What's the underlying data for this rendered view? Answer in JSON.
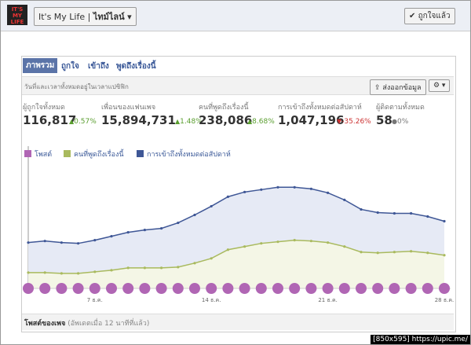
{
  "header": {
    "page_name": "It's My Life",
    "timeline_button": "ไทม์ไลน์",
    "liked_button": "ถูกใจแล้ว"
  },
  "tabs": [
    "ภาพรวม",
    "ถูกใจ",
    "เข้าถึง",
    "พูดถึงเรื่องนี้"
  ],
  "toolbar": {
    "timezone_note": "วันที่และเวลาทั้งหมดอยู่ในเวลาแปซิฟิก",
    "export_button": "ส่งออกข้อมูล"
  },
  "stats": [
    {
      "label": "ผู้ถูกใจทั้งหมด",
      "value": "116,817",
      "change": "0.57%",
      "trend": "up"
    },
    {
      "label": "เพื่อนของแฟนเพจ",
      "value": "15,894,731",
      "change": "1.48%",
      "trend": "up"
    },
    {
      "label": "คนที่พูดถึงเรื่องนี้",
      "value": "238,086",
      "change": "8.68%",
      "trend": "up"
    },
    {
      "label": "การเข้าถึงทั้งหมดต่อสัปดาห์",
      "value": "1,047,196",
      "change": "-35.26%",
      "trend": "down"
    },
    {
      "label": "ผู้ติดตามทั้งหมด",
      "value": "58",
      "change": "0%",
      "trend": "flat"
    }
  ],
  "chart_data": {
    "type": "line",
    "categories": [
      null,
      null,
      null,
      null,
      "7 ธ.ค.",
      null,
      null,
      null,
      null,
      null,
      null,
      "14 ธ.ค.",
      null,
      null,
      null,
      null,
      null,
      null,
      "21 ธ.ค.",
      null,
      null,
      null,
      null,
      null,
      null,
      "28 ธ.ค."
    ],
    "ylim": [
      0,
      180
    ],
    "posts": {
      "name": "โพสต์",
      "color": "#b066b4"
    },
    "series": [
      {
        "name": "คนที่พูดถึงเรื่องนี้",
        "color": "#a9ba5e",
        "fill": "#f4f6e6",
        "values": [
          20,
          20,
          19,
          19,
          21,
          23,
          26,
          26,
          26,
          27,
          32,
          38,
          49,
          53,
          57,
          59,
          61,
          60,
          58,
          53,
          46,
          45,
          46,
          47,
          45,
          42
        ]
      },
      {
        "name": "การเข้าถึงทั้งหมดต่อสัปดาห์",
        "color": "#3f5796",
        "fill": "#e6eaf5",
        "values": [
          58,
          60,
          58,
          57,
          61,
          66,
          71,
          74,
          76,
          83,
          93,
          104,
          116,
          122,
          125,
          128,
          128,
          126,
          121,
          112,
          100,
          96,
          95,
          95,
          91,
          85
        ]
      }
    ]
  },
  "footer": {
    "title": "โพสต์ของเพจ",
    "updated": "(อัพเดตเมื่อ 12 นาทีที่แล้ว)"
  },
  "watermark": "[850x595] https://upic.me/"
}
